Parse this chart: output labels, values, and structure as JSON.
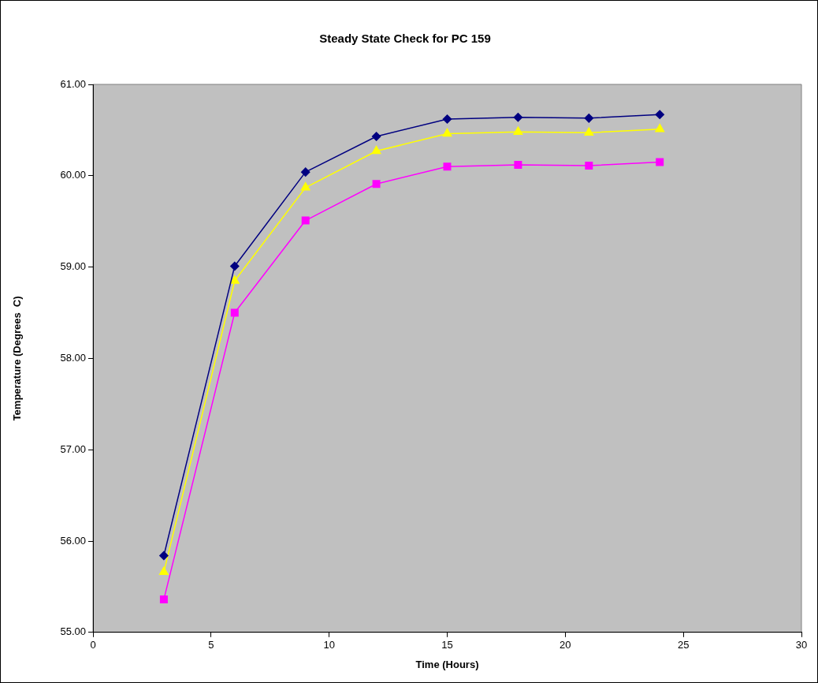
{
  "chart_data": {
    "type": "line",
    "title": "Steady State Check for PC 159",
    "xlabel": "Time (Hours)",
    "ylabel": "Temperature (Degrees  C)",
    "x": [
      3,
      6,
      9,
      12,
      15,
      18,
      21,
      24
    ],
    "series": [
      {
        "color": "#000080",
        "marker": "diamond",
        "values": [
          55.84,
          59.01,
          60.04,
          60.43,
          60.62,
          60.64,
          60.63,
          60.67
        ]
      },
      {
        "color": "#ffff00",
        "marker": "triangle",
        "values": [
          55.66,
          58.85,
          59.87,
          60.27,
          60.46,
          60.48,
          60.47,
          60.51
        ]
      },
      {
        "color": "#ff00ff",
        "marker": "square",
        "values": [
          55.36,
          58.5,
          59.51,
          59.91,
          60.1,
          60.12,
          60.11,
          60.15
        ]
      }
    ],
    "xlim": [
      0,
      30
    ],
    "xticks": [
      0,
      5,
      10,
      15,
      20,
      25,
      30
    ],
    "ylim": [
      55,
      61
    ],
    "yticks": [
      {
        "value": 55,
        "label": "55.00"
      },
      {
        "value": 56,
        "label": "56.00"
      },
      {
        "value": 57,
        "label": "57.00"
      },
      {
        "value": 58,
        "label": "58.00"
      },
      {
        "value": 59,
        "label": "59.00"
      },
      {
        "value": 60,
        "label": "60.00"
      },
      {
        "value": 61,
        "label": "61.00"
      }
    ],
    "grid": false,
    "legend": false,
    "line_style": "solid"
  }
}
